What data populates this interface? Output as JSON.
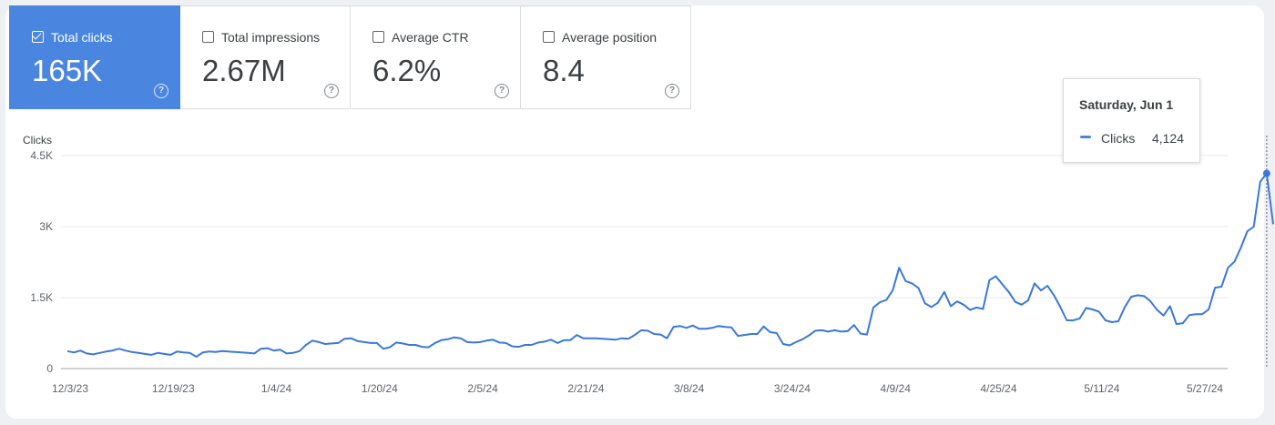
{
  "metrics": [
    {
      "label": "Total clicks",
      "value": "165K",
      "checked": true
    },
    {
      "label": "Total impressions",
      "value": "2.67M",
      "checked": false
    },
    {
      "label": "Average CTR",
      "value": "6.2%",
      "checked": false
    },
    {
      "label": "Average position",
      "value": "8.4",
      "checked": false
    }
  ],
  "help_glyph": "?",
  "colors": {
    "accent": "#4a86e0",
    "line": "#3b78d8",
    "grid": "#e8eaed"
  },
  "tooltip": {
    "date": "Saturday, Jun 1",
    "series": "Clicks",
    "value": "4,124"
  },
  "chart_data": {
    "type": "line",
    "ylabel": "Clicks",
    "ylim": [
      0,
      4500
    ],
    "yticks": [
      0,
      1500,
      3000,
      4500
    ],
    "ytick_labels": [
      "0",
      "1.5K",
      "3K",
      "4.5K"
    ],
    "xtick_labels": [
      "12/3/23",
      "12/19/23",
      "1/4/24",
      "1/20/24",
      "2/5/24",
      "2/21/24",
      "3/8/24",
      "3/24/24",
      "4/9/24",
      "4/25/24",
      "5/11/24",
      "5/27/24"
    ],
    "x_start": "2023-12-03",
    "x_end": "2024-06-02",
    "grid": true,
    "series": [
      {
        "name": "Clicks",
        "values": [
          370,
          340,
          380,
          320,
          300,
          330,
          360,
          380,
          420,
          380,
          350,
          330,
          310,
          290,
          330,
          310,
          290,
          360,
          340,
          330,
          250,
          340,
          360,
          350,
          370,
          360,
          350,
          340,
          330,
          320,
          420,
          430,
          380,
          400,
          320,
          330,
          370,
          500,
          590,
          560,
          520,
          530,
          540,
          630,
          640,
          580,
          560,
          540,
          540,
          420,
          450,
          550,
          530,
          500,
          500,
          460,
          450,
          540,
          600,
          620,
          660,
          640,
          560,
          550,
          560,
          590,
          610,
          550,
          540,
          470,
          460,
          500,
          500,
          550,
          570,
          610,
          540,
          600,
          600,
          710,
          640,
          640,
          640,
          630,
          620,
          610,
          640,
          630,
          710,
          810,
          800,
          730,
          720,
          640,
          880,
          900,
          860,
          910,
          840,
          840,
          860,
          900,
          880,
          870,
          690,
          710,
          730,
          730,
          890,
          770,
          750,
          520,
          490,
          560,
          620,
          700,
          800,
          810,
          780,
          810,
          780,
          790,
          920,
          740,
          720,
          1290,
          1400,
          1450,
          1650,
          2130,
          1850,
          1800,
          1700,
          1380,
          1300,
          1390,
          1620,
          1320,
          1420,
          1350,
          1240,
          1290,
          1260,
          1870,
          1950,
          1780,
          1620,
          1410,
          1350,
          1440,
          1800,
          1650,
          1750,
          1550,
          1300,
          1020,
          1020,
          1060,
          1280,
          1250,
          1200,
          1020,
          980,
          1000,
          1300,
          1520,
          1550,
          1530,
          1420,
          1240,
          1120,
          1320,
          940,
          960,
          1130,
          1150,
          1150,
          1250,
          1710,
          1730,
          2130,
          2260,
          2560,
          2900,
          3000,
          3950,
          4124,
          3050
        ]
      }
    ]
  }
}
